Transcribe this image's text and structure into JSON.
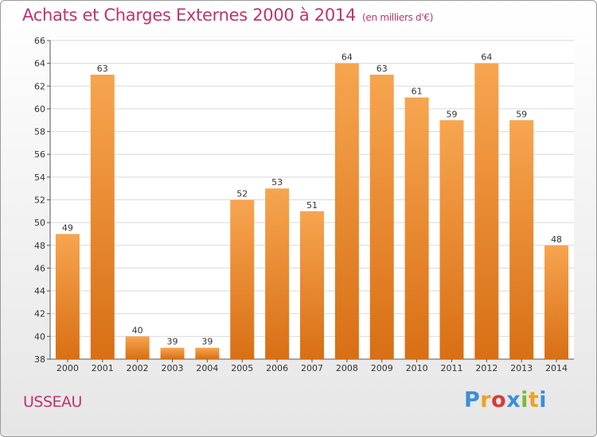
{
  "chart_data": {
    "type": "bar",
    "title": "Achats et Charges Externes 2000 à 2014",
    "subtitle": "(en milliers d'€)",
    "categories": [
      "2000",
      "2001",
      "2002",
      "2003",
      "2004",
      "2005",
      "2006",
      "2007",
      "2008",
      "2009",
      "2010",
      "2011",
      "2012",
      "2013",
      "2014"
    ],
    "values": [
      49,
      63,
      40,
      39,
      39,
      52,
      53,
      51,
      64,
      63,
      61,
      59,
      64,
      59,
      48
    ],
    "ylim": [
      38,
      66
    ],
    "yticks": [
      38,
      40,
      42,
      44,
      46,
      48,
      50,
      52,
      54,
      56,
      58,
      60,
      62,
      64,
      66
    ],
    "grid": true,
    "bar_color": "#f08a2a"
  },
  "location": "USSEAU",
  "brand": {
    "letters": [
      "P",
      "r",
      "o",
      "x",
      "i",
      "t",
      "i"
    ],
    "colors": [
      "#3b8fd6",
      "#f0a020",
      "#d83a3a",
      "#3b8fd6",
      "#7ab93a",
      "#f0a020",
      "#3b8fd6"
    ]
  }
}
